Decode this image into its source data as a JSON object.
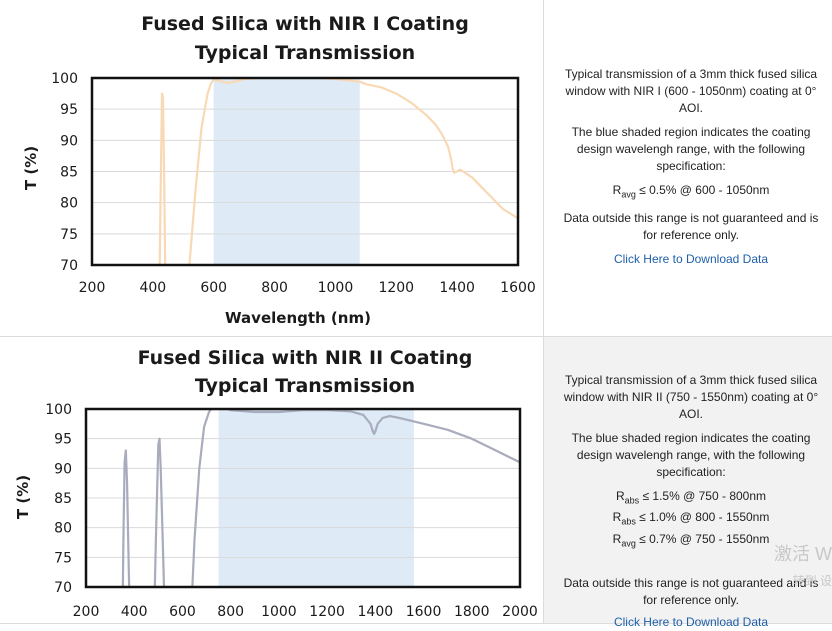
{
  "charts": [
    {
      "title_line1": "Fused Silica with NIR I Coating",
      "title_line2": "Typical Transmission",
      "description": "Typical transmission of a 3mm thick fused silica window with NIR I (600 - 1050nm) coating at 0° AOI.",
      "shaded_note": "The blue shaded region indicates the coating design wavelengh range, with the following specification:",
      "specs": [
        {
          "symbol": "R",
          "sub": "avg",
          "text": " ≤ 0.5% @ 600 - 1050nm"
        }
      ],
      "disclaimer": "Data outside this range is not guaranteed and is for reference only.",
      "download_label": "Click Here to Download Data"
    },
    {
      "title_line1": "Fused Silica with NIR II Coating",
      "title_line2": "Typical Transmission",
      "description": "Typical transmission of a 3mm thick fused silica window with NIR II (750 - 1550nm) coating at 0° AOI.",
      "shaded_note": "The blue shaded region indicates the coating design wavelengh range, with the following specification:",
      "specs": [
        {
          "symbol": "R",
          "sub": "abs",
          "text": " ≤ 1.5% @ 750 - 800nm"
        },
        {
          "symbol": "R",
          "sub": "abs",
          "text": " ≤ 1.0% @ 800 - 1550nm"
        },
        {
          "symbol": "R",
          "sub": "avg",
          "text": " ≤ 0.7% @ 750 - 1550nm"
        }
      ],
      "disclaimer": "Data outside this range is not guaranteed and is for reference only.",
      "download_label": "Click Here to Download Data"
    }
  ],
  "watermark": {
    "line1": "激活 W",
    "line2": "转到 设"
  },
  "chart_data": [
    {
      "type": "line",
      "title": "Fused Silica with NIR I Coating Typical Transmission",
      "xlabel": "Wavelength (nm)",
      "ylabel": "T (%)",
      "xlim": [
        200,
        1600
      ],
      "ylim": [
        70,
        100
      ],
      "xticks": [
        200,
        400,
        600,
        800,
        1000,
        1200,
        1400,
        1600
      ],
      "yticks": [
        70,
        75,
        80,
        85,
        90,
        95,
        100
      ],
      "grid": true,
      "shaded_region": [
        600,
        1080
      ],
      "series": [
        {
          "color": "#f9d9b5",
          "x": [
            420,
            425,
            430,
            433,
            437,
            440,
            445,
            500,
            520,
            540,
            560,
            580,
            590,
            600,
            620,
            650,
            700,
            750,
            800,
            850,
            900,
            950,
            1000,
            1050,
            1080,
            1100,
            1150,
            1200,
            1250,
            1300,
            1330,
            1350,
            1370,
            1380,
            1385,
            1390,
            1400,
            1410,
            1420,
            1450,
            1500,
            1550,
            1600
          ],
          "y": [
            60,
            80,
            97.5,
            97,
            85,
            72,
            60,
            60,
            70,
            82,
            92,
            97.5,
            99,
            99.8,
            99.5,
            99.2,
            99.8,
            100,
            100,
            100,
            100,
            100,
            99.8,
            99.6,
            99.4,
            99,
            98.5,
            97.5,
            96,
            94,
            92.5,
            91,
            89,
            87,
            85.5,
            84.8,
            85,
            85.3,
            85,
            84,
            81.5,
            79,
            77.5
          ]
        }
      ]
    },
    {
      "type": "line",
      "title": "Fused Silica with NIR II Coating Typical Transmission",
      "xlabel": "",
      "ylabel": "T (%)",
      "xlim": [
        200,
        2000
      ],
      "ylim": [
        70,
        100
      ],
      "xticks": [
        200,
        400,
        600,
        800,
        1000,
        1200,
        1400,
        1600,
        1800,
        2000
      ],
      "yticks": [
        70,
        75,
        80,
        85,
        90,
        95,
        100
      ],
      "grid": true,
      "shaded_region": [
        750,
        1560
      ],
      "series": [
        {
          "color": "#a8acbd",
          "x": [
            350,
            355,
            360,
            365,
            370,
            378,
            385,
            480,
            490,
            500,
            505,
            510,
            520,
            530,
            630,
            650,
            670,
            690,
            710,
            730,
            750,
            800,
            900,
            1000,
            1100,
            1200,
            1300,
            1350,
            1380,
            1390,
            1395,
            1400,
            1410,
            1430,
            1460,
            1500,
            1600,
            1700,
            1800,
            1900,
            2000
          ],
          "y": [
            60,
            78,
            91,
            93,
            88,
            72,
            60,
            60,
            78,
            94,
            95,
            90,
            75,
            60,
            60,
            78,
            90,
            97,
            99.5,
            100.5,
            100.8,
            99.8,
            99.5,
            99.5,
            99.8,
            99.8,
            99.6,
            99,
            97.5,
            96.2,
            95.8,
            96.2,
            97.5,
            98.5,
            98.8,
            98.5,
            97.5,
            96.5,
            95,
            93,
            91
          ]
        }
      ]
    }
  ]
}
